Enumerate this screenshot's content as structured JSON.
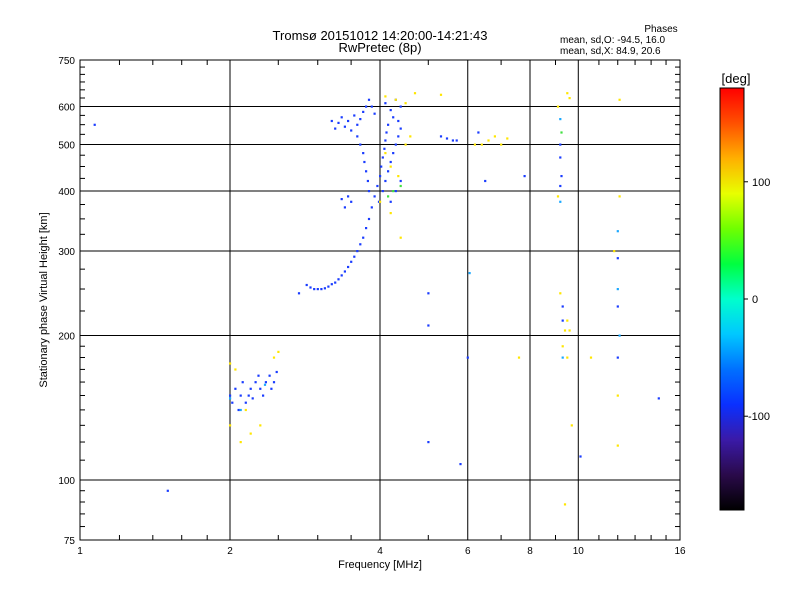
{
  "header": {
    "title_line1": "Tromsø 20151012 14:20:00-14:21:43",
    "title_line2": "RwPretec (8p)"
  },
  "stats": {
    "heading": "Phases",
    "line1": "mean, sd,O: -94.5, 16.0",
    "line2": "mean, sd,X:  84.9, 20.6"
  },
  "colorbar": {
    "unit_label": "[deg]",
    "ticks": [
      "100",
      "0",
      "-100"
    ],
    "tick_values": [
      100,
      0,
      -100
    ],
    "range": [
      -180,
      180
    ],
    "stops": [
      "#000000",
      "#2a0a4a",
      "#3a1aa8",
      "#0a30ff",
      "#0070ff",
      "#00c8ff",
      "#00ffcc",
      "#00ff40",
      "#70ff00",
      "#e8ff00",
      "#ffb000",
      "#ff5000",
      "#ff0000"
    ]
  },
  "chart_data": {
    "type": "scatter",
    "title": "Tromsø 20151012 14:20:00-14:21:43",
    "subtitle": "RwPretec (8p)",
    "xlabel": "Frequency [MHz]",
    "ylabel": "Stationary phase Virtual Height [km]",
    "xscale": "log",
    "yscale": "log",
    "xlim": [
      1,
      16
    ],
    "ylim": [
      75,
      750
    ],
    "x_ticks": [
      1,
      2,
      4,
      6,
      8,
      10,
      16
    ],
    "x_tick_labels": [
      "1",
      "2",
      "4",
      "6",
      "8",
      "10",
      "16"
    ],
    "y_ticks": [
      75,
      100,
      200,
      300,
      400,
      500,
      600,
      750
    ],
    "y_tick_labels": [
      "75",
      "100",
      "200",
      "300",
      "400",
      "500",
      "600",
      "750"
    ],
    "grid": true,
    "colors": {
      "blue": "#1a3cff",
      "yellow": "#ffe600",
      "cyan": "#1aa8ff",
      "green": "#40e040"
    },
    "series": [
      {
        "color": "blue",
        "points": [
          [
            1.07,
            550
          ],
          [
            1.5,
            95
          ],
          [
            2.0,
            150
          ],
          [
            2.02,
            145
          ],
          [
            2.05,
            155
          ],
          [
            2.08,
            140
          ],
          [
            2.1,
            150
          ],
          [
            2.12,
            160
          ],
          [
            2.15,
            145
          ],
          [
            2.18,
            150
          ],
          [
            2.2,
            155
          ],
          [
            2.22,
            148
          ],
          [
            2.25,
            160
          ],
          [
            2.28,
            165
          ],
          [
            2.3,
            155
          ],
          [
            2.33,
            150
          ],
          [
            2.36,
            160
          ],
          [
            2.4,
            165
          ],
          [
            2.42,
            155
          ],
          [
            2.45,
            160
          ],
          [
            2.48,
            168
          ],
          [
            2.75,
            245
          ],
          [
            2.85,
            255
          ],
          [
            2.9,
            252
          ],
          [
            2.95,
            250
          ],
          [
            3.0,
            250
          ],
          [
            3.05,
            250
          ],
          [
            3.1,
            251
          ],
          [
            3.15,
            253
          ],
          [
            3.2,
            256
          ],
          [
            3.25,
            258
          ],
          [
            3.3,
            262
          ],
          [
            3.35,
            267
          ],
          [
            3.4,
            272
          ],
          [
            3.45,
            278
          ],
          [
            3.5,
            285
          ],
          [
            3.55,
            292
          ],
          [
            3.6,
            300
          ],
          [
            3.65,
            310
          ],
          [
            3.7,
            320
          ],
          [
            3.75,
            335
          ],
          [
            3.8,
            350
          ],
          [
            3.85,
            370
          ],
          [
            3.9,
            390
          ],
          [
            3.95,
            410
          ],
          [
            4.0,
            430
          ],
          [
            4.02,
            450
          ],
          [
            4.05,
            470
          ],
          [
            4.08,
            490
          ],
          [
            4.1,
            510
          ],
          [
            4.12,
            530
          ],
          [
            4.15,
            550
          ],
          [
            3.98,
            380
          ],
          [
            4.05,
            400
          ],
          [
            4.1,
            420
          ],
          [
            4.15,
            440
          ],
          [
            4.2,
            460
          ],
          [
            4.25,
            480
          ],
          [
            4.3,
            500
          ],
          [
            4.35,
            520
          ],
          [
            4.4,
            540
          ],
          [
            4.2,
            380
          ],
          [
            4.3,
            400
          ],
          [
            4.4,
            420
          ],
          [
            3.2,
            560
          ],
          [
            3.25,
            540
          ],
          [
            3.3,
            555
          ],
          [
            3.35,
            570
          ],
          [
            3.4,
            545
          ],
          [
            3.45,
            560
          ],
          [
            3.5,
            535
          ],
          [
            3.55,
            575
          ],
          [
            3.6,
            550
          ],
          [
            3.65,
            565
          ],
          [
            3.7,
            585
          ],
          [
            3.75,
            600
          ],
          [
            3.8,
            620
          ],
          [
            3.85,
            600
          ],
          [
            3.9,
            580
          ],
          [
            3.6,
            520
          ],
          [
            3.65,
            500
          ],
          [
            3.7,
            480
          ],
          [
            3.72,
            460
          ],
          [
            3.75,
            440
          ],
          [
            3.78,
            420
          ],
          [
            3.8,
            400
          ],
          [
            3.5,
            380
          ],
          [
            3.45,
            390
          ],
          [
            3.4,
            370
          ],
          [
            3.35,
            385
          ],
          [
            4.1,
            610
          ],
          [
            4.2,
            590
          ],
          [
            4.3,
            620
          ],
          [
            4.4,
            600
          ],
          [
            4.25,
            570
          ],
          [
            4.35,
            560
          ],
          [
            5.0,
            245
          ],
          [
            5.0,
            210
          ],
          [
            5.0,
            120
          ],
          [
            5.3,
            520
          ],
          [
            5.45,
            515
          ],
          [
            5.6,
            510
          ],
          [
            5.7,
            510
          ],
          [
            6.0,
            180
          ],
          [
            5.8,
            108
          ],
          [
            6.3,
            530
          ],
          [
            6.5,
            420
          ],
          [
            7.8,
            430
          ],
          [
            9.2,
            500
          ],
          [
            9.2,
            470
          ],
          [
            9.2,
            410
          ],
          [
            9.3,
            230
          ],
          [
            9.3,
            215
          ],
          [
            9.25,
            430
          ],
          [
            10.1,
            112
          ],
          [
            12.0,
            230
          ],
          [
            12.0,
            290
          ],
          [
            12.0,
            180
          ],
          [
            14.5,
            148
          ]
        ]
      },
      {
        "color": "yellow",
        "points": [
          [
            2.0,
            175
          ],
          [
            2.0,
            130
          ],
          [
            2.05,
            170
          ],
          [
            2.1,
            120
          ],
          [
            2.15,
            140
          ],
          [
            2.2,
            125
          ],
          [
            2.3,
            130
          ],
          [
            2.45,
            180
          ],
          [
            2.5,
            185
          ],
          [
            4.1,
            630
          ],
          [
            4.3,
            620
          ],
          [
            4.5,
            610
          ],
          [
            4.0,
            380
          ],
          [
            4.2,
            360
          ],
          [
            4.4,
            320
          ],
          [
            4.1,
            480
          ],
          [
            4.2,
            450
          ],
          [
            4.35,
            430
          ],
          [
            4.5,
            500
          ],
          [
            4.6,
            520
          ],
          [
            4.7,
            640
          ],
          [
            5.3,
            635
          ],
          [
            6.2,
            500
          ],
          [
            6.4,
            500
          ],
          [
            6.6,
            510
          ],
          [
            6.8,
            520
          ],
          [
            7.0,
            500
          ],
          [
            7.2,
            515
          ],
          [
            7.6,
            180
          ],
          [
            9.1,
            600
          ],
          [
            9.1,
            390
          ],
          [
            9.2,
            245
          ],
          [
            9.3,
            190
          ],
          [
            9.4,
            205
          ],
          [
            9.5,
            215
          ],
          [
            9.6,
            205
          ],
          [
            9.5,
            180
          ],
          [
            9.4,
            89
          ],
          [
            9.5,
            640
          ],
          [
            9.6,
            625
          ],
          [
            9.7,
            130
          ],
          [
            10.6,
            180
          ],
          [
            11.8,
            300
          ],
          [
            12.0,
            150
          ],
          [
            12.0,
            118
          ],
          [
            12.1,
            390
          ],
          [
            12.1,
            620
          ]
        ]
      },
      {
        "color": "cyan",
        "points": [
          [
            2.0,
            148
          ],
          [
            2.1,
            140
          ],
          [
            2.35,
            158
          ],
          [
            6.05,
            270
          ],
          [
            9.2,
            565
          ],
          [
            9.2,
            380
          ],
          [
            9.3,
            180
          ],
          [
            12.0,
            330
          ],
          [
            12.1,
            200
          ],
          [
            12.0,
            250
          ]
        ]
      },
      {
        "color": "green",
        "points": [
          [
            4.25,
            400
          ],
          [
            4.4,
            410
          ],
          [
            4.15,
            390
          ],
          [
            9.25,
            530
          ]
        ]
      }
    ]
  }
}
